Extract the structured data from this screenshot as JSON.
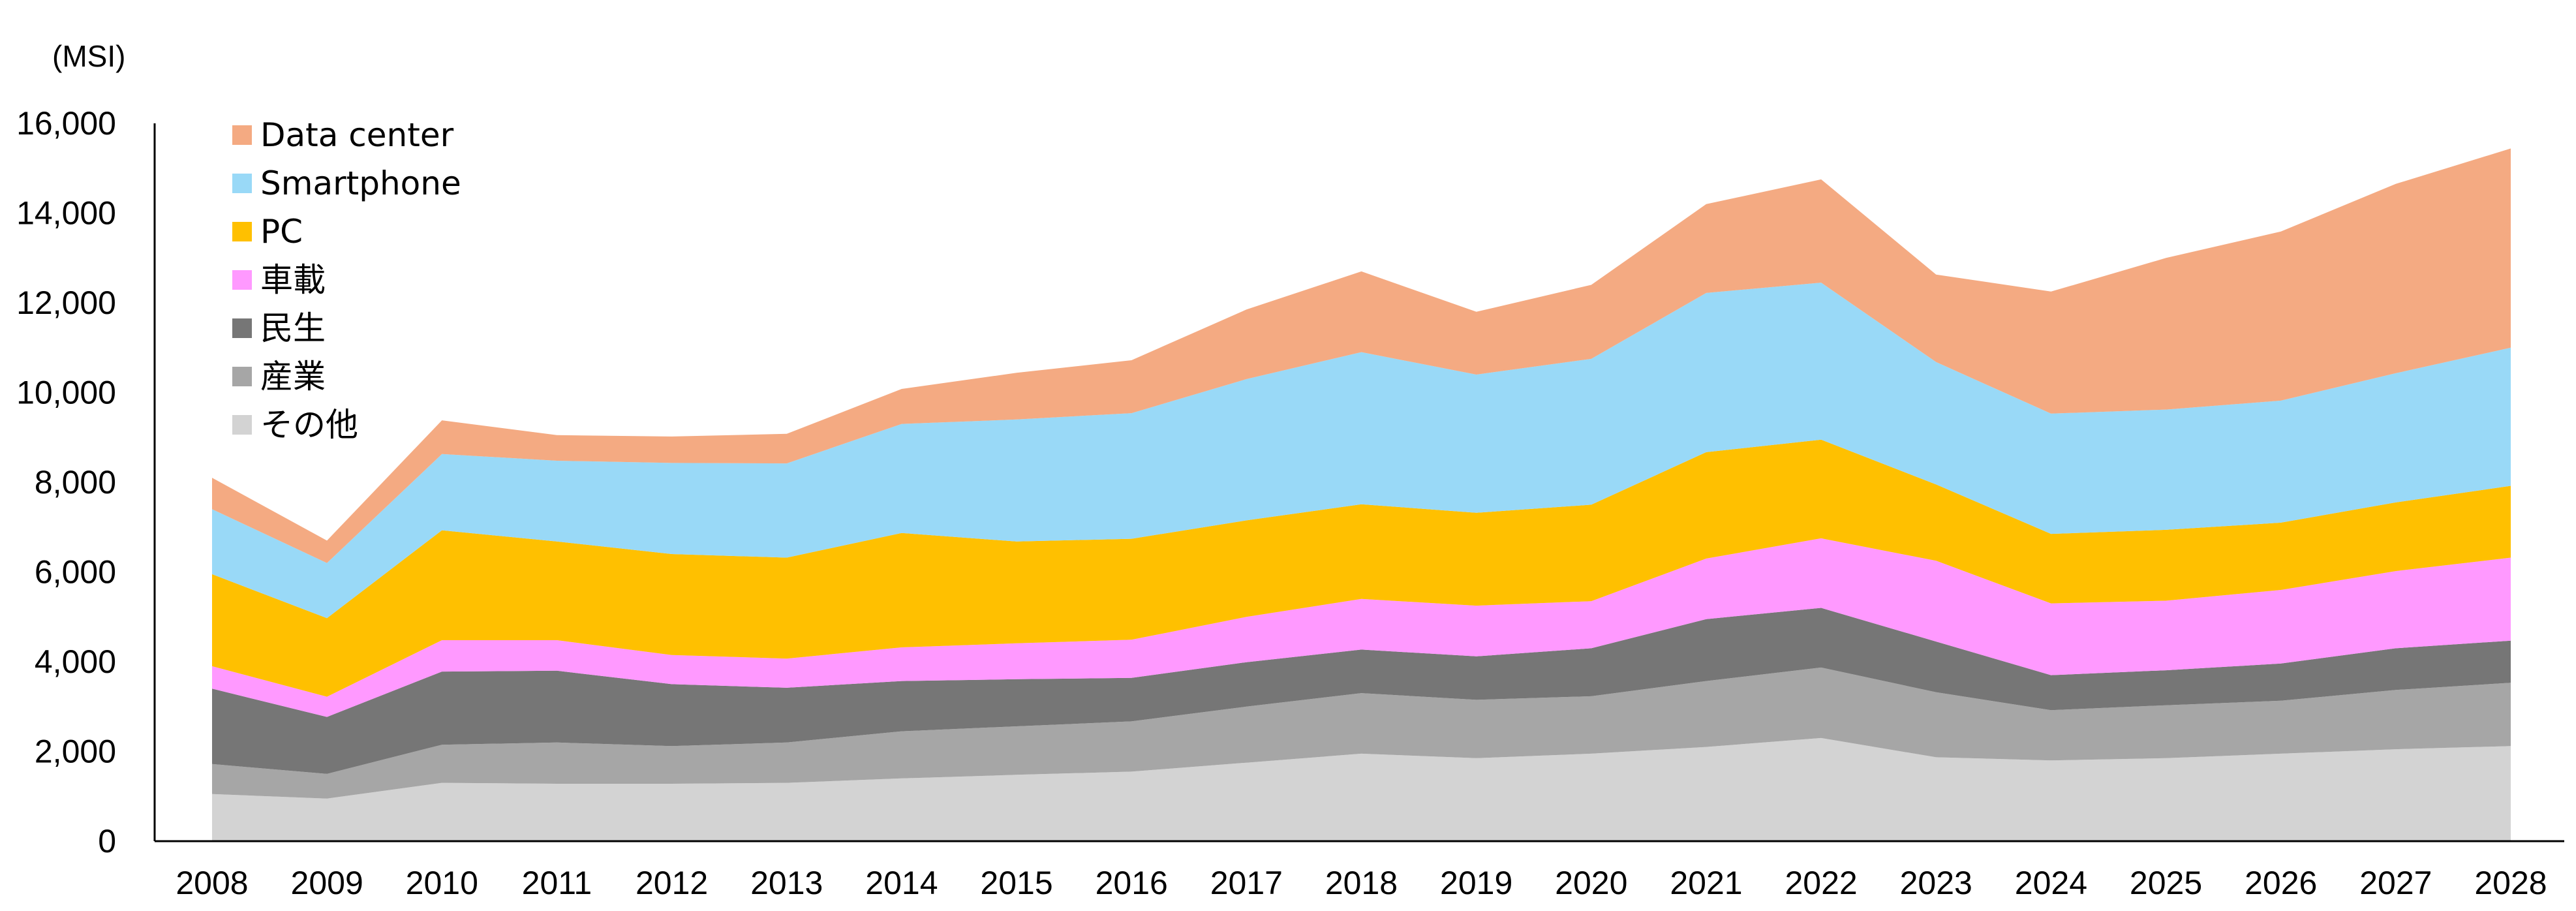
{
  "chart_data": {
    "type": "area",
    "stacked": true,
    "title": "",
    "unit_label": "(MSI)",
    "xlabel": "",
    "ylabel": "",
    "ylim": [
      0,
      16000
    ],
    "yticks": [
      0,
      2000,
      4000,
      6000,
      8000,
      10000,
      12000,
      14000,
      16000
    ],
    "ytick_labels": [
      "0",
      "2,000",
      "4,000",
      "6,000",
      "8,000",
      "10,000",
      "12,000",
      "14,000",
      "16,000"
    ],
    "grid": false,
    "legend_position": "top-left",
    "categories": [
      "2008",
      "2009",
      "2010",
      "2011",
      "2012",
      "2013",
      "2014",
      "2015",
      "2016",
      "2017",
      "2018",
      "2019",
      "2020",
      "2021",
      "2022",
      "2023",
      "2024",
      "2025",
      "2026",
      "2027",
      "2028"
    ],
    "series": [
      {
        "name": "その他",
        "color": "#d3d3d3",
        "values": [
          1050,
          950,
          1300,
          1280,
          1280,
          1300,
          1400,
          1480,
          1550,
          1750,
          1950,
          1850,
          1950,
          2100,
          2300,
          1870,
          1800,
          1850,
          1950,
          2050,
          2120
        ]
      },
      {
        "name": "産業",
        "color": "#a6a6a6",
        "values": [
          670,
          550,
          850,
          920,
          840,
          900,
          1050,
          1080,
          1120,
          1250,
          1350,
          1300,
          1280,
          1470,
          1570,
          1450,
          1120,
          1180,
          1180,
          1320,
          1410
        ]
      },
      {
        "name": "民生",
        "color": "#767676",
        "values": [
          1680,
          1270,
          1630,
          1600,
          1380,
          1220,
          1120,
          1050,
          970,
          990,
          970,
          970,
          1070,
          1380,
          1330,
          1130,
          780,
          780,
          830,
          930,
          940
        ]
      },
      {
        "name": "車載",
        "color": "#ff99ff",
        "values": [
          500,
          450,
          700,
          680,
          650,
          650,
          750,
          800,
          850,
          1010,
          1130,
          1130,
          1050,
          1350,
          1550,
          1800,
          1600,
          1550,
          1640,
          1720,
          1850
        ]
      },
      {
        "name": "PC",
        "color": "#ffc000",
        "values": [
          2050,
          1750,
          2450,
          2200,
          2250,
          2250,
          2550,
          2270,
          2250,
          2150,
          2110,
          2070,
          2150,
          2370,
          2200,
          1700,
          1550,
          1580,
          1500,
          1530,
          1600
        ]
      },
      {
        "name": "Smartphone",
        "color": "#99d9f7",
        "values": [
          1450,
          1230,
          1700,
          1800,
          2030,
          2100,
          2430,
          2720,
          2800,
          3150,
          3390,
          3080,
          3250,
          3550,
          3500,
          2730,
          2680,
          2680,
          2720,
          2880,
          3080
        ]
      },
      {
        "name": "Data center",
        "color": "#f4aa82",
        "values": [
          700,
          500,
          750,
          570,
          590,
          660,
          780,
          1040,
          1180,
          1550,
          1800,
          1400,
          1650,
          1980,
          2300,
          1950,
          2720,
          3380,
          3770,
          4220,
          4440
        ]
      }
    ],
    "legend_order": [
      "Data center",
      "Smartphone",
      "PC",
      "車載",
      "民生",
      "産業",
      "その他"
    ]
  }
}
